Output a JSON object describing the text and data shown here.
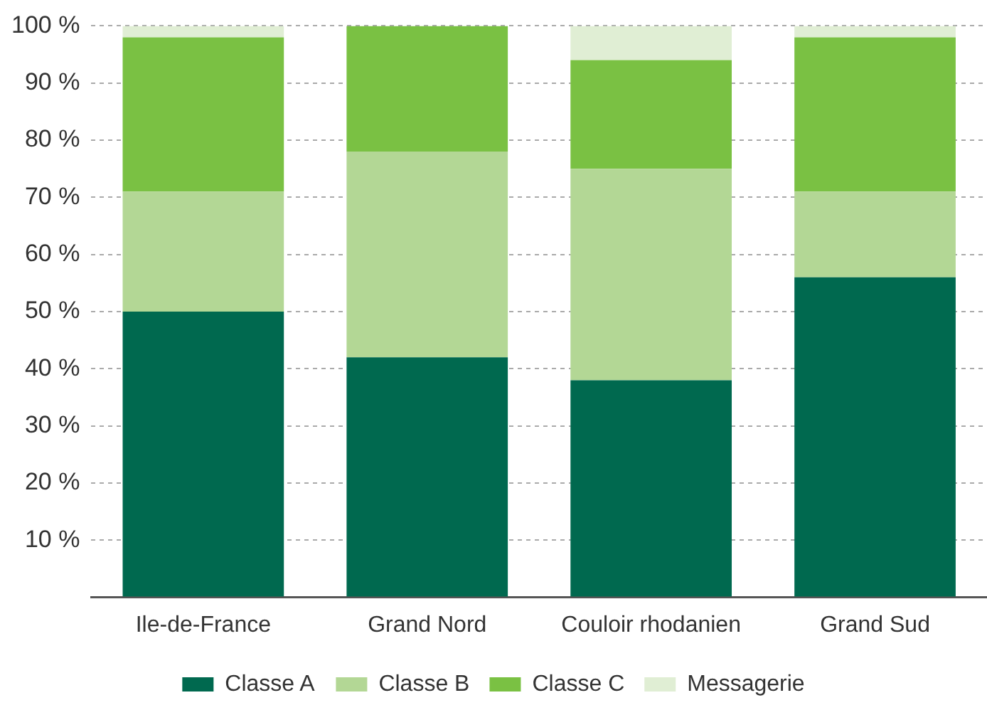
{
  "chart_data": {
    "type": "bar",
    "stacked": true,
    "categories": [
      "Ile-de-France",
      "Grand Nord",
      "Couloir rhodanien",
      "Grand Sud"
    ],
    "series": [
      {
        "name": "Classe A",
        "color": "#00694f",
        "values": [
          50,
          42,
          38,
          56
        ]
      },
      {
        "name": "Classe B",
        "color": "#b3d795",
        "values": [
          21,
          36,
          37,
          15
        ]
      },
      {
        "name": "Classe C",
        "color": "#7ac143",
        "values": [
          27,
          22,
          19,
          27
        ]
      },
      {
        "name": "Messagerie",
        "color": "#e0eed4",
        "values": [
          2,
          0,
          6,
          2
        ]
      }
    ],
    "ylim": [
      0,
      100
    ],
    "yticks": [
      {
        "value": 0,
        "label": null
      },
      {
        "value": 10,
        "label": "10 %"
      },
      {
        "value": 20,
        "label": "20 %"
      },
      {
        "value": 30,
        "label": "30 %"
      },
      {
        "value": 40,
        "label": "40 %"
      },
      {
        "value": 50,
        "label": "50 %"
      },
      {
        "value": 60,
        "label": "60 %"
      },
      {
        "value": 70,
        "label": "70 %"
      },
      {
        "value": 80,
        "label": "80 %"
      },
      {
        "value": 90,
        "label": "90 %"
      },
      {
        "value": 100,
        "label": "100 %"
      }
    ],
    "grid": "y",
    "legend": "bottom"
  }
}
